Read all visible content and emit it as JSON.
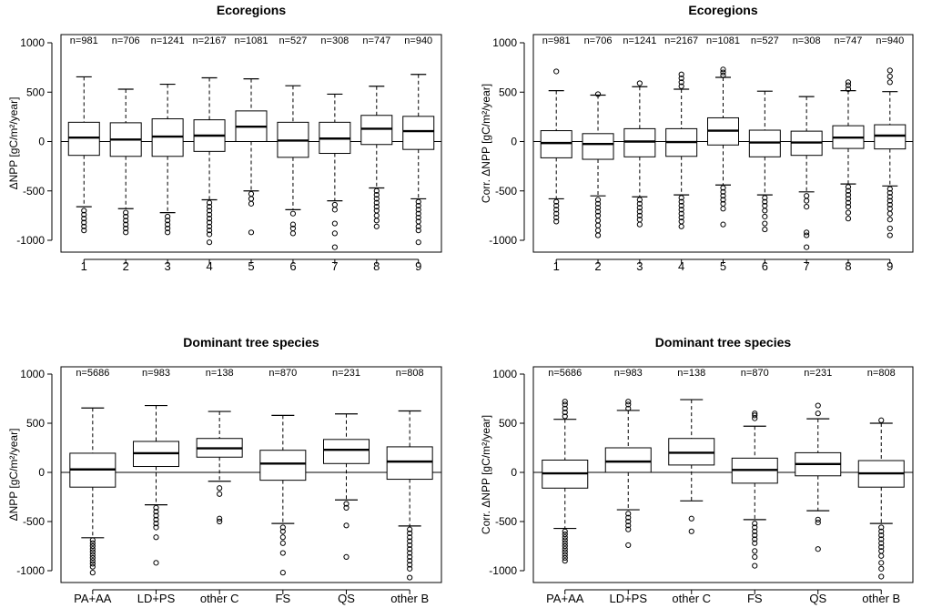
{
  "chart_data": [
    {
      "type": "box",
      "title": "Ecoregions",
      "ylabel": "ΔNPP [gC/m²/year]",
      "ylim": [
        -1050,
        1050
      ],
      "yticks": [
        -1000,
        -500,
        0,
        500,
        1000
      ],
      "categories": [
        "1",
        "2",
        "3",
        "4",
        "5",
        "6",
        "7",
        "8",
        "9"
      ],
      "n_labels": [
        "n=981",
        "n=706",
        "n=1241",
        "n=2167",
        "n=1081",
        "n=527",
        "n=308",
        "n=747",
        "n=940"
      ],
      "boxes": [
        {
          "lw": -660,
          "q1": -140,
          "med": 40,
          "q3": 195,
          "uw": 655,
          "outliers": [
            -700,
            -740,
            -780,
            -820,
            -860,
            -900
          ]
        },
        {
          "lw": -680,
          "q1": -150,
          "med": 20,
          "q3": 190,
          "uw": 530,
          "outliers": [
            -720,
            -760,
            -800,
            -840,
            -880,
            -920
          ]
        },
        {
          "lw": -720,
          "q1": -150,
          "med": 50,
          "q3": 230,
          "uw": 580,
          "outliers": [
            -760,
            -800,
            -840,
            -880,
            -920
          ]
        },
        {
          "lw": -590,
          "q1": -100,
          "med": 60,
          "q3": 220,
          "uw": 645,
          "outliers": [
            -620,
            -660,
            -700,
            -740,
            -780,
            -820,
            -860,
            -900,
            -940,
            -1020
          ]
        },
        {
          "lw": -500,
          "q1": 0,
          "med": 150,
          "q3": 310,
          "uw": 635,
          "outliers": [
            -530,
            -580,
            -630,
            -920
          ]
        },
        {
          "lw": -690,
          "q1": -160,
          "med": 10,
          "q3": 195,
          "uw": 565,
          "outliers": [
            -730,
            -840,
            -880,
            -930
          ]
        },
        {
          "lw": -600,
          "q1": -120,
          "med": 30,
          "q3": 195,
          "uw": 480,
          "outliers": [
            -640,
            -690,
            -830,
            -930,
            -1070
          ]
        },
        {
          "lw": -470,
          "q1": -30,
          "med": 130,
          "q3": 265,
          "uw": 560,
          "outliers": [
            -500,
            -540,
            -580,
            -620,
            -660,
            -700,
            -750,
            -800,
            -860
          ]
        },
        {
          "lw": -580,
          "q1": -80,
          "med": 105,
          "q3": 255,
          "uw": 680,
          "outliers": [
            -610,
            -650,
            -690,
            -730,
            -770,
            -810,
            -860,
            -900,
            -1020
          ]
        }
      ]
    },
    {
      "type": "box",
      "title": "Ecoregions",
      "ylabel": "Corr. ΔNPP [gC/m²/year]",
      "ylim": [
        -1050,
        1050
      ],
      "yticks": [
        -1000,
        -500,
        0,
        500,
        1000
      ],
      "categories": [
        "1",
        "2",
        "3",
        "4",
        "5",
        "6",
        "7",
        "8",
        "9"
      ],
      "n_labels": [
        "n=981",
        "n=706",
        "n=1241",
        "n=2167",
        "n=1081",
        "n=527",
        "n=308",
        "n=747",
        "n=940"
      ],
      "boxes": [
        {
          "lw": -580,
          "q1": -165,
          "med": -15,
          "q3": 110,
          "uw": 515,
          "outliers": [
            -610,
            -650,
            -690,
            -730,
            -770,
            -810,
            710
          ]
        },
        {
          "lw": -550,
          "q1": -180,
          "med": -25,
          "q3": 80,
          "uw": 470,
          "outliers": [
            -590,
            -630,
            -670,
            -710,
            -750,
            -800,
            -850,
            -900,
            -950,
            480
          ]
        },
        {
          "lw": -560,
          "q1": -155,
          "med": 0,
          "q3": 130,
          "uw": 555,
          "outliers": [
            -590,
            -630,
            -670,
            -710,
            -750,
            -790,
            -840,
            590
          ]
        },
        {
          "lw": -540,
          "q1": -150,
          "med": -5,
          "q3": 130,
          "uw": 530,
          "outliers": [
            -570,
            -610,
            -650,
            -690,
            -730,
            -770,
            -810,
            -860,
            560,
            600,
            640,
            680
          ]
        },
        {
          "lw": -440,
          "q1": -35,
          "med": 110,
          "q3": 240,
          "uw": 650,
          "outliers": [
            -470,
            -510,
            -550,
            -590,
            -630,
            -680,
            -840,
            670,
            700,
            730
          ]
        },
        {
          "lw": -540,
          "q1": -155,
          "med": -10,
          "q3": 115,
          "uw": 510,
          "outliers": [
            -570,
            -610,
            -650,
            -700,
            -760,
            -830,
            -890
          ]
        },
        {
          "lw": -510,
          "q1": -140,
          "med": -10,
          "q3": 105,
          "uw": 455,
          "outliers": [
            -550,
            -600,
            -660,
            -920,
            -950,
            -1070
          ]
        },
        {
          "lw": -430,
          "q1": -70,
          "med": 40,
          "q3": 160,
          "uw": 515,
          "outliers": [
            -460,
            -500,
            -540,
            -580,
            -620,
            -660,
            -720,
            -780,
            530,
            570,
            600
          ]
        },
        {
          "lw": -450,
          "q1": -75,
          "med": 60,
          "q3": 170,
          "uw": 505,
          "outliers": [
            -480,
            -520,
            -560,
            -600,
            -640,
            -680,
            -730,
            -790,
            -880,
            -950,
            600,
            660,
            720
          ]
        }
      ]
    },
    {
      "type": "box",
      "title": "Dominant tree species",
      "ylabel": "ΔNPP [gC/m²/year]",
      "ylim": [
        -1050,
        1050
      ],
      "yticks": [
        -1000,
        -500,
        0,
        500,
        1000
      ],
      "categories": [
        "PA+AA",
        "LD+PS",
        "other C",
        "FS",
        "QS",
        "other B"
      ],
      "n_labels": [
        "n=5686",
        "n=983",
        "n=138",
        "n=870",
        "n=231",
        "n=808"
      ],
      "boxes": [
        {
          "lw": -665,
          "q1": -150,
          "med": 30,
          "q3": 195,
          "uw": 655,
          "outliers": [
            -690,
            -720,
            -750,
            -780,
            -810,
            -840,
            -870,
            -900,
            -930,
            -960,
            -1020
          ]
        },
        {
          "lw": -330,
          "q1": 60,
          "med": 195,
          "q3": 315,
          "uw": 680,
          "outliers": [
            -360,
            -400,
            -440,
            -480,
            -520,
            -560,
            -660,
            -920
          ]
        },
        {
          "lw": -90,
          "q1": 155,
          "med": 245,
          "q3": 345,
          "uw": 620,
          "outliers": [
            -160,
            -220,
            -470,
            -500
          ]
        },
        {
          "lw": -520,
          "q1": -80,
          "med": 90,
          "q3": 225,
          "uw": 580,
          "outliers": [
            -560,
            -600,
            -660,
            -720,
            -820,
            -1020
          ]
        },
        {
          "lw": -280,
          "q1": 90,
          "med": 230,
          "q3": 335,
          "uw": 595,
          "outliers": [
            -320,
            -360,
            -540,
            -860
          ]
        },
        {
          "lw": -545,
          "q1": -70,
          "med": 110,
          "q3": 260,
          "uw": 625,
          "outliers": [
            -580,
            -620,
            -660,
            -700,
            -740,
            -780,
            -820,
            -860,
            -900,
            -940,
            -980,
            -1070
          ]
        }
      ]
    },
    {
      "type": "box",
      "title": "Dominant tree species",
      "ylabel": "Corr. ΔNPP [gC/m²/year]",
      "ylim": [
        -1050,
        1050
      ],
      "yticks": [
        -1000,
        -500,
        0,
        500,
        1000
      ],
      "categories": [
        "PA+AA",
        "LD+PS",
        "other C",
        "FS",
        "QS",
        "other B"
      ],
      "n_labels": [
        "n=5686",
        "n=983",
        "n=138",
        "n=870",
        "n=231",
        "n=808"
      ],
      "boxes": [
        {
          "lw": -570,
          "q1": -160,
          "med": -10,
          "q3": 125,
          "uw": 540,
          "outliers": [
            -600,
            -630,
            -660,
            -690,
            -720,
            -750,
            -780,
            -810,
            -840,
            -870,
            -900,
            570,
            610,
            650,
            690,
            720
          ]
        },
        {
          "lw": -380,
          "q1": 0,
          "med": 110,
          "q3": 250,
          "uw": 630,
          "outliers": [
            -420,
            -460,
            -500,
            -540,
            -580,
            -740,
            650,
            690,
            720
          ]
        },
        {
          "lw": -290,
          "q1": 75,
          "med": 200,
          "q3": 345,
          "uw": 740,
          "outliers": [
            -470,
            -600
          ]
        },
        {
          "lw": -480,
          "q1": -110,
          "med": 25,
          "q3": 145,
          "uw": 470,
          "outliers": [
            -520,
            -560,
            -600,
            -640,
            -680,
            -720,
            -800,
            -860,
            -950,
            550,
            580,
            600
          ]
        },
        {
          "lw": -390,
          "q1": -35,
          "med": 85,
          "q3": 200,
          "uw": 545,
          "outliers": [
            -480,
            -510,
            -780,
            600,
            680
          ]
        },
        {
          "lw": -520,
          "q1": -150,
          "med": -10,
          "q3": 120,
          "uw": 500,
          "outliers": [
            -560,
            -600,
            -640,
            -680,
            -720,
            -760,
            -800,
            -850,
            -920,
            -980,
            -1060,
            530
          ]
        }
      ]
    }
  ]
}
